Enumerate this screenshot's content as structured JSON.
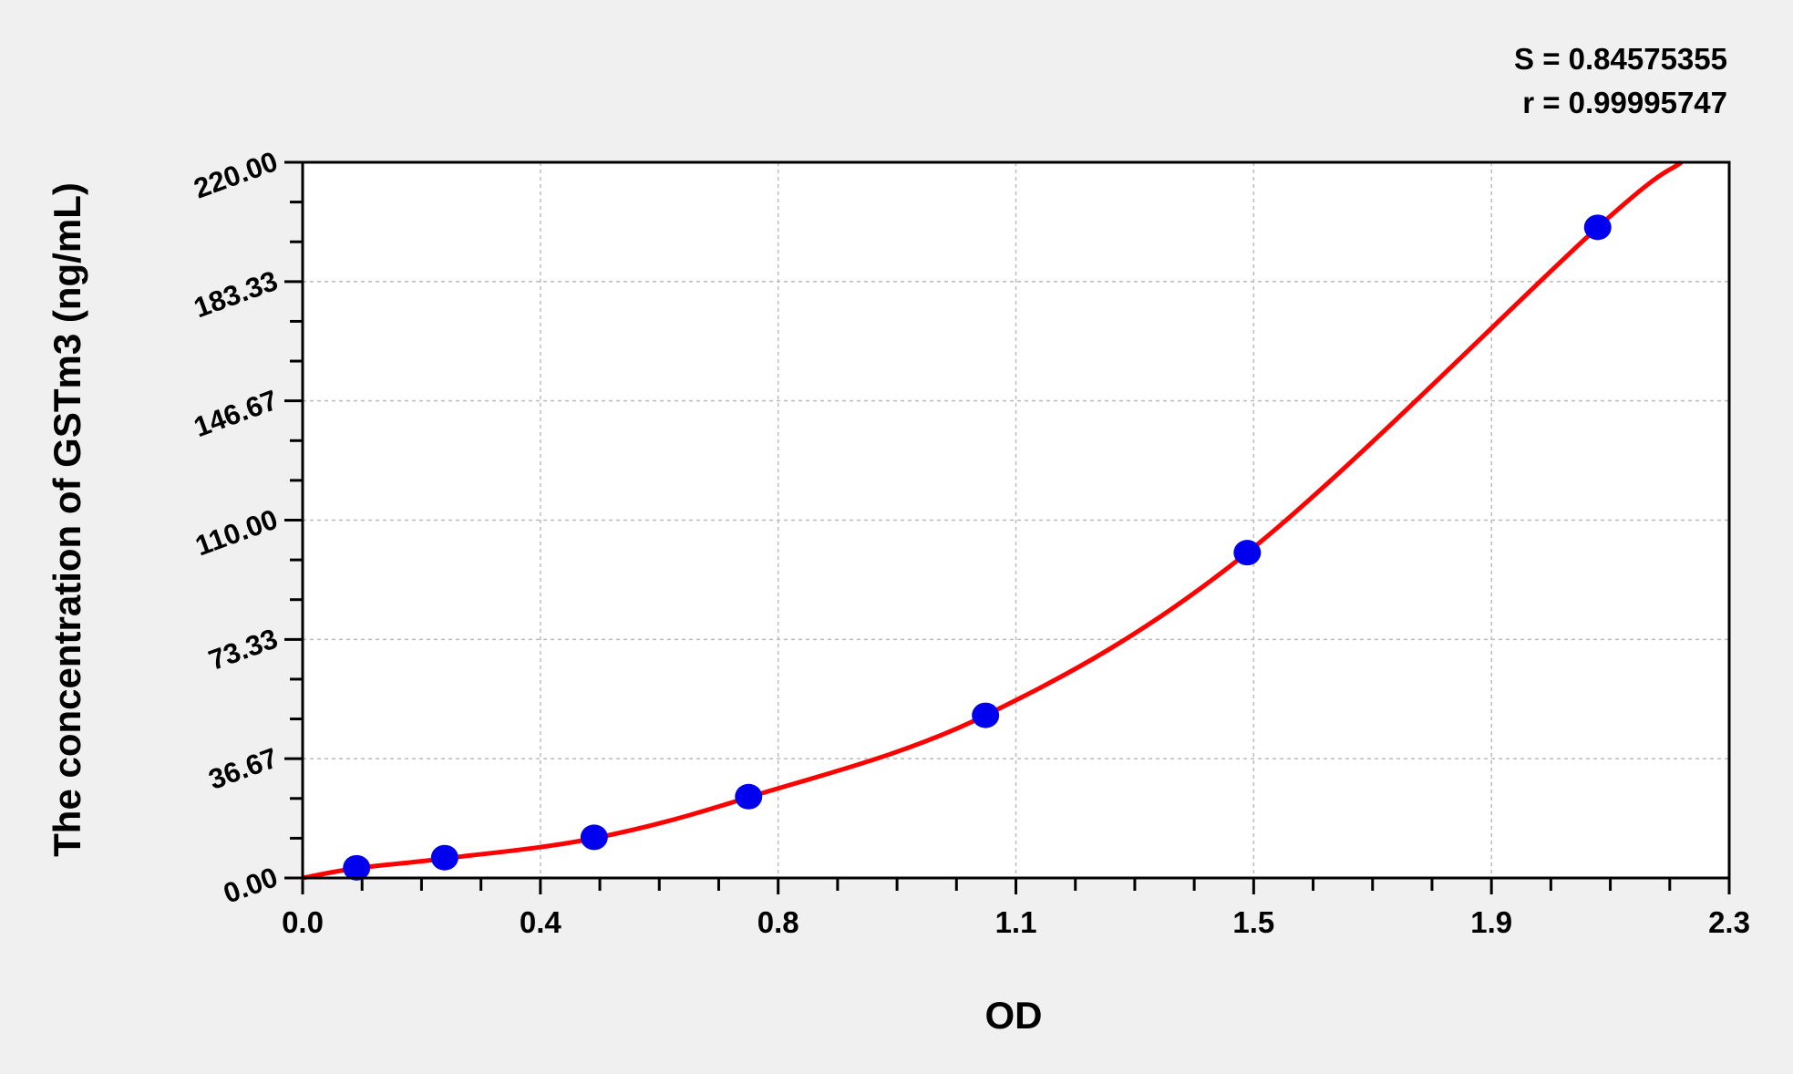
{
  "chart_data": {
    "type": "scatter",
    "xlabel": "OD",
    "ylabel": "The concentration of GSTm3 (ng/mL)",
    "xlim": [
      0,
      2.3
    ],
    "ylim": [
      0,
      220
    ],
    "x_ticks": [
      "0.0",
      "0.4",
      "0.8",
      "1.1",
      "1.5",
      "1.9",
      "2.3"
    ],
    "y_ticks": [
      "0.00",
      "36.67",
      "73.33",
      "110.00",
      "146.67",
      "183.33",
      "220.00"
    ],
    "grid": true,
    "stats": [
      "S = 0.84575355",
      "r = 0.99995747"
    ],
    "points": {
      "x": [
        0.087,
        0.229,
        0.47,
        0.719,
        1.101,
        1.523,
        2.088
      ],
      "y": [
        3.13,
        6.25,
        12.5,
        25,
        50,
        100,
        200
      ]
    },
    "fit_curve": {
      "x": [
        0,
        0.087,
        0.229,
        0.47,
        0.719,
        1.101,
        1.523,
        2.088,
        2.223
      ],
      "y": [
        0,
        3,
        6,
        12.2,
        24.8,
        50,
        100,
        200,
        220
      ]
    },
    "colors": {
      "points": "#0000ee",
      "curve": "#ff0000",
      "background": "#f0f0f0",
      "plot": "#ffffff"
    }
  }
}
